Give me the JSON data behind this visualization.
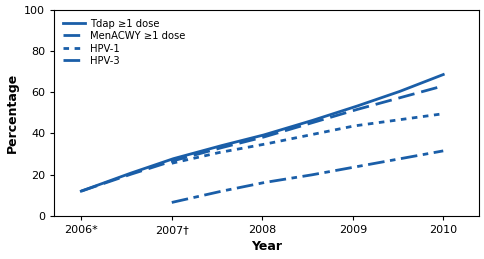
{
  "xlabel": "Year",
  "ylabel": "Percentage",
  "xlim": [
    2005.7,
    2010.4
  ],
  "ylim": [
    0,
    100
  ],
  "yticks": [
    0,
    20,
    40,
    60,
    80,
    100
  ],
  "xtick_labels": [
    "2006*",
    "2007†",
    "2008",
    "2009",
    "2010"
  ],
  "xtick_positions": [
    2006,
    2007,
    2008,
    2009,
    2010
  ],
  "color": "#1a5ea8",
  "series": {
    "Tdap": {
      "label": "Tdap ≥1 dose",
      "linestyle": "solid",
      "linewidth": 2.0,
      "x": [
        2006,
        2006.5,
        2007,
        2007.5,
        2008,
        2008.5,
        2009,
        2009.5,
        2010
      ],
      "y": [
        12.0,
        20.0,
        27.5,
        33.5,
        39.0,
        45.5,
        52.5,
        60.0,
        68.5
      ]
    },
    "MenACWY": {
      "label": "MenACWY ≥1 dose",
      "linestyle": "dashed",
      "linewidth": 2.0,
      "x": [
        2006,
        2006.5,
        2007,
        2007.5,
        2008,
        2008.5,
        2009,
        2009.5,
        2010
      ],
      "y": [
        12.0,
        19.5,
        26.5,
        32.5,
        38.0,
        44.5,
        51.0,
        57.0,
        63.0
      ]
    },
    "HPV1": {
      "label": "HPV-1",
      "linestyle": "dotted",
      "linewidth": 2.0,
      "x": [
        2007,
        2007.5,
        2008,
        2008.5,
        2009,
        2009.5,
        2010
      ],
      "y": [
        25.5,
        30.5,
        34.5,
        39.0,
        43.5,
        46.5,
        49.5
      ]
    },
    "HPV3": {
      "label": "HPV-3",
      "linestyle": "dashdot",
      "linewidth": 2.0,
      "x": [
        2007,
        2007.5,
        2008,
        2008.5,
        2009,
        2009.5,
        2010
      ],
      "y": [
        6.5,
        11.5,
        16.0,
        19.5,
        23.5,
        27.5,
        31.5
      ]
    }
  },
  "legend": {
    "loc": "upper left",
    "fontsize": 7.2,
    "handlelength": 2.2,
    "labelspacing": 0.25,
    "borderpad": 0.4,
    "handletextpad": 0.5
  }
}
